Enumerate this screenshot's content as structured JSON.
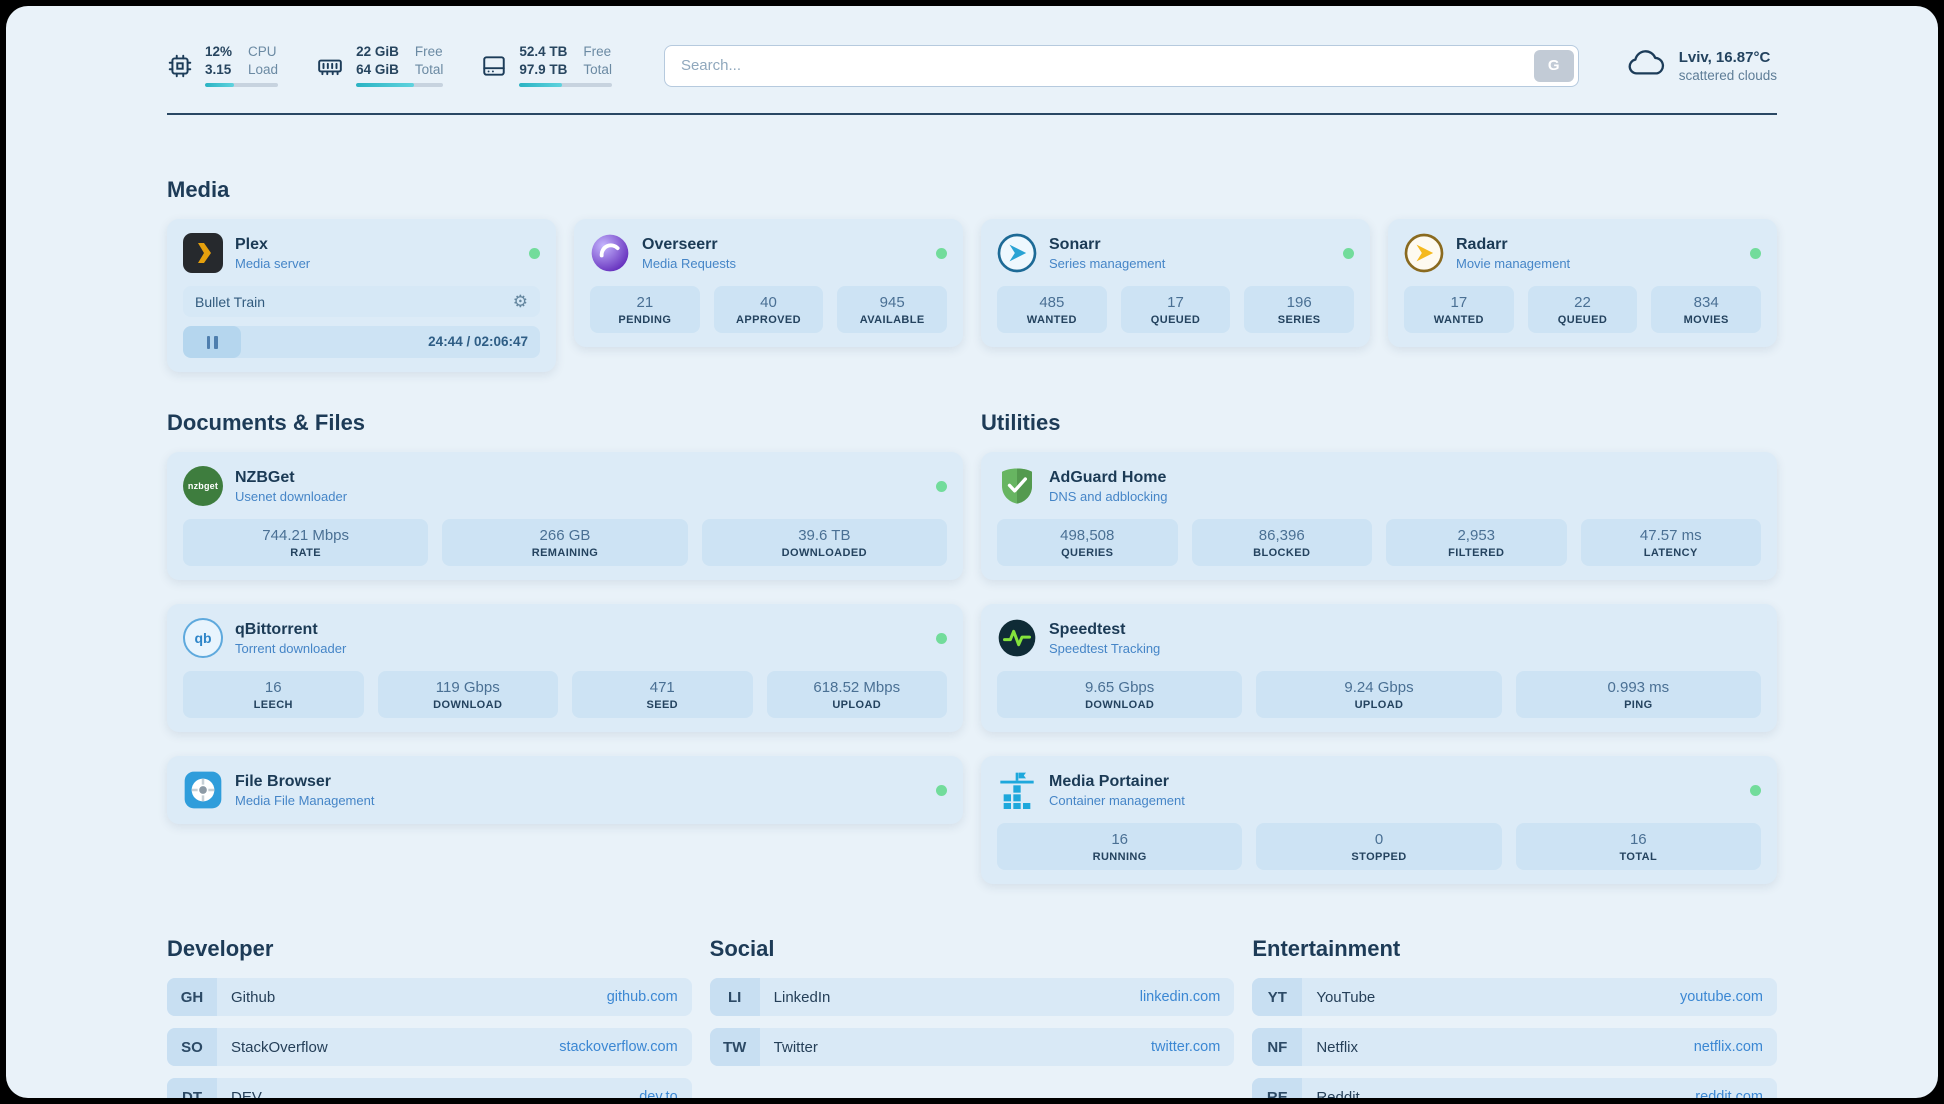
{
  "colors": {
    "accent": "#2ab3c3",
    "online": "#72dc9b",
    "link": "#3b87d3",
    "background": "#e9f2f9",
    "card": "#dcebf7"
  },
  "topbar": {
    "stats": [
      {
        "icon": "cpu-icon",
        "values": [
          "12%",
          "3.15"
        ],
        "labels": [
          "CPU",
          "Load"
        ],
        "progress": 40
      },
      {
        "icon": "ram-icon",
        "values": [
          "22 GiB",
          "64 GiB"
        ],
        "labels": [
          "Free",
          "Total"
        ],
        "progress": 66
      },
      {
        "icon": "disk-icon",
        "values": [
          "52.4 TB",
          "97.9 TB"
        ],
        "labels": [
          "Free",
          "Total"
        ],
        "progress": 46
      }
    ],
    "search": {
      "placeholder": "Search...",
      "button_label": "G"
    },
    "weather": {
      "location": "Lviv, 16.87°C",
      "condition": "scattered clouds"
    }
  },
  "media": {
    "title": "Media",
    "cards": [
      {
        "name": "Plex",
        "subtitle": "Media server",
        "online": true,
        "player": {
          "track": "Bullet Train",
          "time": "24:44 / 02:06:47"
        }
      },
      {
        "name": "Overseerr",
        "subtitle": "Media Requests",
        "online": true,
        "stats": [
          {
            "value": "21",
            "label": "PENDING"
          },
          {
            "value": "40",
            "label": "APPROVED"
          },
          {
            "value": "945",
            "label": "AVAILABLE"
          }
        ]
      },
      {
        "name": "Sonarr",
        "subtitle": "Series management",
        "online": true,
        "stats": [
          {
            "value": "485",
            "label": "WANTED"
          },
          {
            "value": "17",
            "label": "QUEUED"
          },
          {
            "value": "196",
            "label": "SERIES"
          }
        ]
      },
      {
        "name": "Radarr",
        "subtitle": "Movie management",
        "online": true,
        "stats": [
          {
            "value": "17",
            "label": "WANTED"
          },
          {
            "value": "22",
            "label": "QUEUED"
          },
          {
            "value": "834",
            "label": "MOVIES"
          }
        ]
      }
    ]
  },
  "documents": {
    "title": "Documents & Files",
    "cards": [
      {
        "name": "NZBGet",
        "subtitle": "Usenet downloader",
        "online": true,
        "stats": [
          {
            "value": "744.21 Mbps",
            "label": "RATE"
          },
          {
            "value": "266 GB",
            "label": "REMAINING"
          },
          {
            "value": "39.6 TB",
            "label": "DOWNLOADED"
          }
        ]
      },
      {
        "name": "qBittorrent",
        "subtitle": "Torrent downloader",
        "online": true,
        "stats": [
          {
            "value": "16",
            "label": "LEECH"
          },
          {
            "value": "119 Gbps",
            "label": "DOWNLOAD"
          },
          {
            "value": "471",
            "label": "SEED"
          },
          {
            "value": "618.52 Mbps",
            "label": "UPLOAD"
          }
        ]
      },
      {
        "name": "File Browser",
        "subtitle": "Media File Management",
        "online": true
      }
    ]
  },
  "utilities": {
    "title": "Utilities",
    "cards": [
      {
        "name": "AdGuard Home",
        "subtitle": "DNS and adblocking",
        "online": false,
        "stats": [
          {
            "value": "498,508",
            "label": "QUERIES"
          },
          {
            "value": "86,396",
            "label": "BLOCKED"
          },
          {
            "value": "2,953",
            "label": "FILTERED"
          },
          {
            "value": "47.57 ms",
            "label": "LATENCY"
          }
        ]
      },
      {
        "name": "Speedtest",
        "subtitle": "Speedtest Tracking",
        "online": false,
        "stats": [
          {
            "value": "9.65 Gbps",
            "label": "DOWNLOAD"
          },
          {
            "value": "9.24 Gbps",
            "label": "UPLOAD"
          },
          {
            "value": "0.993 ms",
            "label": "PING"
          }
        ]
      },
      {
        "name": "Media Portainer",
        "subtitle": "Container management",
        "online": true,
        "stats": [
          {
            "value": "16",
            "label": "RUNNING"
          },
          {
            "value": "0",
            "label": "STOPPED"
          },
          {
            "value": "16",
            "label": "TOTAL"
          }
        ]
      }
    ]
  },
  "bookmarks": [
    {
      "title": "Developer",
      "items": [
        {
          "abbr": "GH",
          "name": "Github",
          "url": "github.com"
        },
        {
          "abbr": "SO",
          "name": "StackOverflow",
          "url": "stackoverflow.com"
        },
        {
          "abbr": "DT",
          "name": "DEV",
          "url": "dev.to"
        }
      ]
    },
    {
      "title": "Social",
      "items": [
        {
          "abbr": "LI",
          "name": "LinkedIn",
          "url": "linkedin.com"
        },
        {
          "abbr": "TW",
          "name": "Twitter",
          "url": "twitter.com"
        }
      ]
    },
    {
      "title": "Entertainment",
      "items": [
        {
          "abbr": "YT",
          "name": "YouTube",
          "url": "youtube.com"
        },
        {
          "abbr": "NF",
          "name": "Netflix",
          "url": "netflix.com"
        },
        {
          "abbr": "RE",
          "name": "Reddit",
          "url": "reddit.com"
        }
      ]
    }
  ]
}
